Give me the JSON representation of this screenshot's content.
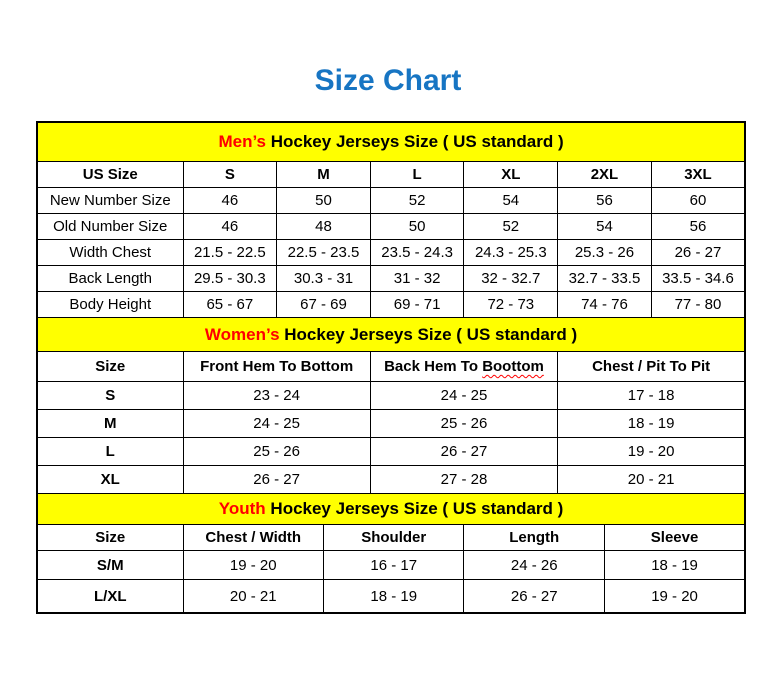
{
  "page": {
    "title": "Size Chart",
    "title_color": "#1775C3"
  },
  "colors": {
    "band_background": "#FFFF00",
    "accent_red": "#FF0000",
    "border_black": "#000000",
    "title_blue": "#1775C3"
  },
  "sections": [
    {
      "id": "mens",
      "band": {
        "highlight": "Men’s",
        "rest": " Hockey Jerseys Size ( US standard )"
      },
      "columns": [
        {
          "label": "US Size"
        },
        {
          "label": "S"
        },
        {
          "label": "M"
        },
        {
          "label": "L"
        },
        {
          "label": "XL"
        },
        {
          "label": "2XL"
        },
        {
          "label": "3XL"
        }
      ],
      "bold_row_labels": false,
      "rows": [
        {
          "label": "New Number Size",
          "values": [
            "46",
            "50",
            "52",
            "54",
            "56",
            "60"
          ]
        },
        {
          "label": "Old Number Size",
          "values": [
            "46",
            "48",
            "50",
            "52",
            "54",
            "56"
          ]
        },
        {
          "label": "Width Chest",
          "values": [
            "21.5 - 22.5",
            "22.5 - 23.5",
            "23.5 - 24.3",
            "24.3 - 25.3",
            "25.3 - 26",
            "26 - 27"
          ]
        },
        {
          "label": "Back Length",
          "values": [
            "29.5 - 30.3",
            "30.3 - 31",
            "31 - 32",
            "32 - 32.7",
            "32.7 - 33.5",
            "33.5 - 34.6"
          ]
        },
        {
          "label": "Body Height",
          "values": [
            "65 - 67",
            "67 - 69",
            "69 - 71",
            "72 - 73",
            "74 - 76",
            "77 - 80"
          ]
        }
      ]
    },
    {
      "id": "womens",
      "band": {
        "highlight": "Women’s",
        "rest": " Hockey Jerseys Size ( US standard )"
      },
      "columns": [
        {
          "label": "Size"
        },
        {
          "label": "Front Hem To Bottom"
        },
        {
          "label": "Back Hem To Boottom",
          "squiggle_word": "Boottom"
        },
        {
          "label": "Chest / Pit To Pit"
        }
      ],
      "bold_row_labels": true,
      "rows": [
        {
          "label": "S",
          "values": [
            "23 - 24",
            "24 - 25",
            "17 - 18"
          ]
        },
        {
          "label": "M",
          "values": [
            "24 - 25",
            "25 - 26",
            "18 - 19"
          ]
        },
        {
          "label": "L",
          "values": [
            "25 - 26",
            "26 - 27",
            "19 - 20"
          ]
        },
        {
          "label": "XL",
          "values": [
            "26 - 27",
            "27 - 28",
            "20 - 21"
          ]
        }
      ]
    },
    {
      "id": "youth",
      "band": {
        "highlight": "Youth",
        "rest": " Hockey Jerseys Size ( US standard )"
      },
      "columns": [
        {
          "label": "Size"
        },
        {
          "label": "Chest / Width"
        },
        {
          "label": "Shoulder"
        },
        {
          "label": "Length"
        },
        {
          "label": "Sleeve"
        }
      ],
      "bold_row_labels": true,
      "rows": [
        {
          "label": "S/M",
          "values": [
            "19 - 20",
            "16 - 17",
            "24 - 26",
            "18 - 19"
          ]
        },
        {
          "label": "L/XL",
          "values": [
            "20 - 21",
            "18 - 19",
            "26 - 27",
            "19 - 20"
          ]
        }
      ]
    }
  ]
}
